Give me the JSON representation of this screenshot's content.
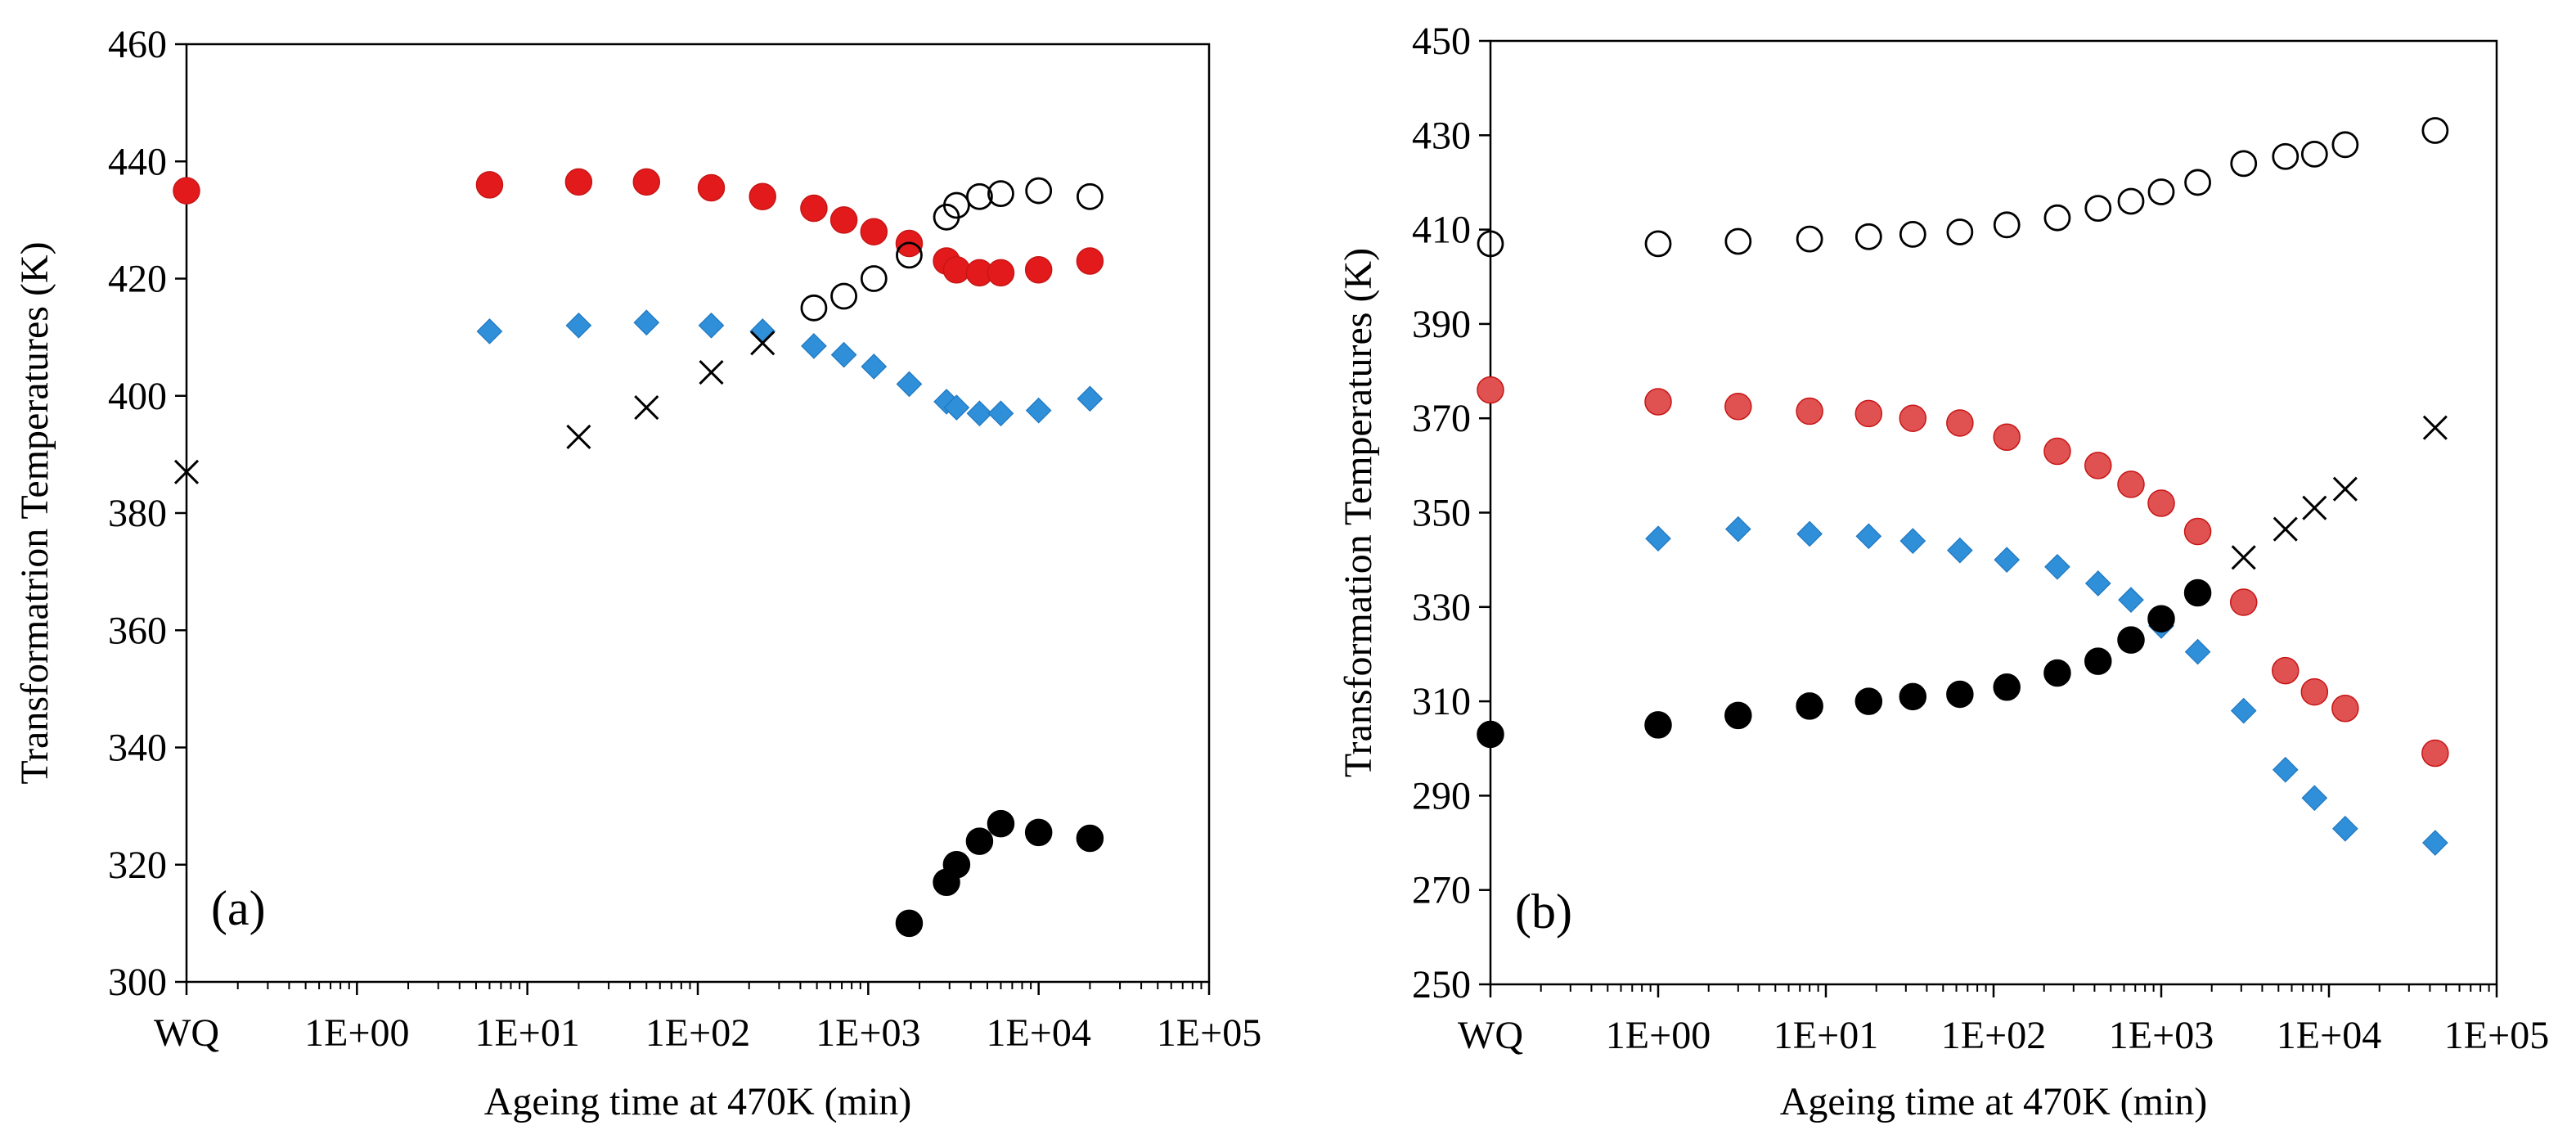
{
  "chart_data": [
    {
      "type": "scatter",
      "panel_label": "(a)",
      "xlabel": "Ageing time at 470K (min)",
      "ylabel": "Transformatrion Temperatures (K)",
      "x_scale": "log",
      "xlim": [
        0.1,
        100000
      ],
      "ylim": [
        300,
        460
      ],
      "y_ticks": [
        300,
        320,
        340,
        360,
        380,
        400,
        420,
        440,
        460
      ],
      "x_ticks": [
        {
          "value": 0.1,
          "label": "WQ"
        },
        {
          "value": 1,
          "label": "1E+00"
        },
        {
          "value": 10,
          "label": "1E+01"
        },
        {
          "value": 100,
          "label": "1E+02"
        },
        {
          "value": 1000,
          "label": "1E+03"
        },
        {
          "value": 10000,
          "label": "1E+04"
        },
        {
          "value": 100000,
          "label": "1E+05"
        }
      ],
      "series": [
        {
          "marker": "filled-circle",
          "color": "#e31a1c",
          "points": [
            [
              0.1,
              435
            ],
            [
              6,
              436
            ],
            [
              20,
              436.5
            ],
            [
              50,
              436.5
            ],
            [
              120,
              435.5
            ],
            [
              240,
              434
            ],
            [
              480,
              432
            ],
            [
              720,
              430
            ],
            [
              1080,
              428
            ],
            [
              1740,
              426
            ],
            [
              2880,
              423
            ],
            [
              3300,
              421.5
            ],
            [
              4500,
              421
            ],
            [
              6000,
              421
            ],
            [
              10000,
              421.5
            ],
            [
              20000,
              423
            ]
          ]
        },
        {
          "marker": "open-circle",
          "color": "#000000",
          "points": [
            [
              480,
              415
            ],
            [
              720,
              417
            ],
            [
              1080,
              420
            ],
            [
              1740,
              424
            ],
            [
              2880,
              430.5
            ],
            [
              3300,
              432.5
            ],
            [
              4500,
              434
            ],
            [
              6000,
              434.5
            ],
            [
              10000,
              435
            ],
            [
              20000,
              434
            ]
          ]
        },
        {
          "marker": "diamond",
          "color": "#2f8fd8",
          "points": [
            [
              6,
              411
            ],
            [
              20,
              412
            ],
            [
              50,
              412.5
            ],
            [
              120,
              412
            ],
            [
              240,
              411
            ],
            [
              480,
              408.5
            ],
            [
              720,
              407
            ],
            [
              1080,
              405
            ],
            [
              1740,
              402
            ],
            [
              2880,
              399
            ],
            [
              3300,
              398
            ],
            [
              4500,
              397
            ],
            [
              6000,
              397
            ],
            [
              10000,
              397.5
            ],
            [
              20000,
              399.5
            ]
          ]
        },
        {
          "marker": "cross",
          "color": "#000000",
          "points": [
            [
              0.1,
              387
            ],
            [
              20,
              393
            ],
            [
              50,
              398
            ],
            [
              120,
              404
            ],
            [
              240,
              409
            ]
          ]
        },
        {
          "marker": "filled-circle",
          "color": "#000000",
          "points": [
            [
              1740,
              310
            ],
            [
              2880,
              317
            ],
            [
              3300,
              320
            ],
            [
              4500,
              324
            ],
            [
              6000,
              327
            ],
            [
              10000,
              325.5
            ],
            [
              20000,
              324.5
            ]
          ]
        }
      ]
    },
    {
      "type": "scatter",
      "panel_label": "(b)",
      "xlabel": "Ageing time at 470K (min)",
      "ylabel": "Transformation Temperatures (K)",
      "x_scale": "log",
      "xlim": [
        0.1,
        100000
      ],
      "ylim": [
        250,
        450
      ],
      "y_ticks": [
        250,
        270,
        290,
        310,
        330,
        350,
        370,
        390,
        410,
        430,
        450
      ],
      "x_ticks": [
        {
          "value": 0.1,
          "label": "WQ"
        },
        {
          "value": 1,
          "label": "1E+00"
        },
        {
          "value": 10,
          "label": "1E+01"
        },
        {
          "value": 100,
          "label": "1E+02"
        },
        {
          "value": 1000,
          "label": "1E+03"
        },
        {
          "value": 10000,
          "label": "1E+04"
        },
        {
          "value": 100000,
          "label": "1E+05"
        }
      ],
      "series": [
        {
          "marker": "open-circle",
          "color": "#000000",
          "points": [
            [
              0.1,
              407
            ],
            [
              1,
              407
            ],
            [
              3,
              407.5
            ],
            [
              8,
              408
            ],
            [
              18,
              408.5
            ],
            [
              33,
              409
            ],
            [
              63,
              409.5
            ],
            [
              120,
              411
            ],
            [
              240,
              412.5
            ],
            [
              420,
              414.5
            ],
            [
              660,
              416
            ],
            [
              1000,
              418
            ],
            [
              1650,
              420
            ],
            [
              3100,
              424
            ],
            [
              5500,
              425.5
            ],
            [
              8200,
              426
            ],
            [
              12500,
              428
            ],
            [
              43000,
              431
            ]
          ]
        },
        {
          "marker": "filled-circle",
          "color": "#e05252",
          "points": [
            [
              0.1,
              376
            ],
            [
              1,
              373.5
            ],
            [
              3,
              372.5
            ],
            [
              8,
              371.5
            ],
            [
              18,
              371
            ],
            [
              33,
              370
            ],
            [
              63,
              369
            ],
            [
              120,
              366
            ],
            [
              240,
              363
            ],
            [
              420,
              360
            ],
            [
              660,
              356
            ],
            [
              1000,
              352
            ],
            [
              1650,
              346
            ],
            [
              3100,
              331
            ],
            [
              5500,
              316.5
            ],
            [
              8200,
              312
            ],
            [
              12500,
              308.5
            ],
            [
              43000,
              299
            ]
          ]
        },
        {
          "marker": "diamond",
          "color": "#2f8fd8",
          "points": [
            [
              1,
              344.5
            ],
            [
              3,
              346.5
            ],
            [
              8,
              345.5
            ],
            [
              18,
              345
            ],
            [
              33,
              344
            ],
            [
              63,
              342
            ],
            [
              120,
              340
            ],
            [
              240,
              338.5
            ],
            [
              420,
              335
            ],
            [
              660,
              331.5
            ],
            [
              1000,
              326
            ],
            [
              1650,
              320.5
            ],
            [
              3100,
              308
            ],
            [
              5500,
              295.5
            ],
            [
              8200,
              289.5
            ],
            [
              12500,
              283
            ],
            [
              43000,
              280
            ]
          ]
        },
        {
          "marker": "cross",
          "color": "#000000",
          "points": [
            [
              3100,
              340.5
            ],
            [
              5500,
              346.5
            ],
            [
              8200,
              351
            ],
            [
              12500,
              355
            ],
            [
              43000,
              368
            ]
          ]
        },
        {
          "marker": "filled-circle",
          "color": "#000000",
          "points": [
            [
              0.1,
              303
            ],
            [
              1,
              305
            ],
            [
              3,
              307
            ],
            [
              8,
              309
            ],
            [
              18,
              310
            ],
            [
              33,
              311
            ],
            [
              63,
              311.5
            ],
            [
              120,
              313
            ],
            [
              240,
              316
            ],
            [
              420,
              318.5
            ],
            [
              660,
              323
            ],
            [
              1000,
              327.5
            ],
            [
              1650,
              333
            ]
          ]
        }
      ]
    }
  ]
}
